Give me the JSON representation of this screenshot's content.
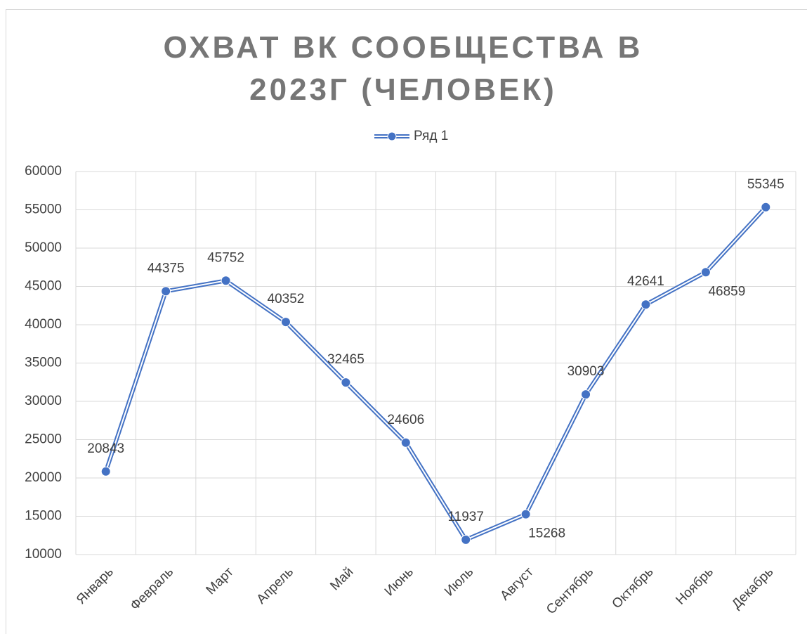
{
  "chart_data": {
    "type": "line",
    "title": "ОХВАТ ВК СООБЩЕСТВА В 2023Г (ЧЕЛОВЕК)",
    "categories": [
      "Январь",
      "Февраль",
      "Март",
      "Апрель",
      "Май",
      "Июнь",
      "Июль",
      "Август",
      "Сентябрь",
      "Октябрь",
      "Ноябрь",
      "Декабрь"
    ],
    "series": [
      {
        "name": "Ряд 1",
        "color": "#4472c4",
        "values": [
          20843,
          44375,
          45752,
          40352,
          32465,
          24606,
          11937,
          15268,
          30903,
          42641,
          46859,
          55345
        ]
      }
    ],
    "ylim": [
      10000,
      60000
    ],
    "yticks": [
      10000,
      15000,
      20000,
      25000,
      30000,
      35000,
      40000,
      45000,
      50000,
      55000,
      60000
    ],
    "grid": true,
    "legend": "top"
  }
}
